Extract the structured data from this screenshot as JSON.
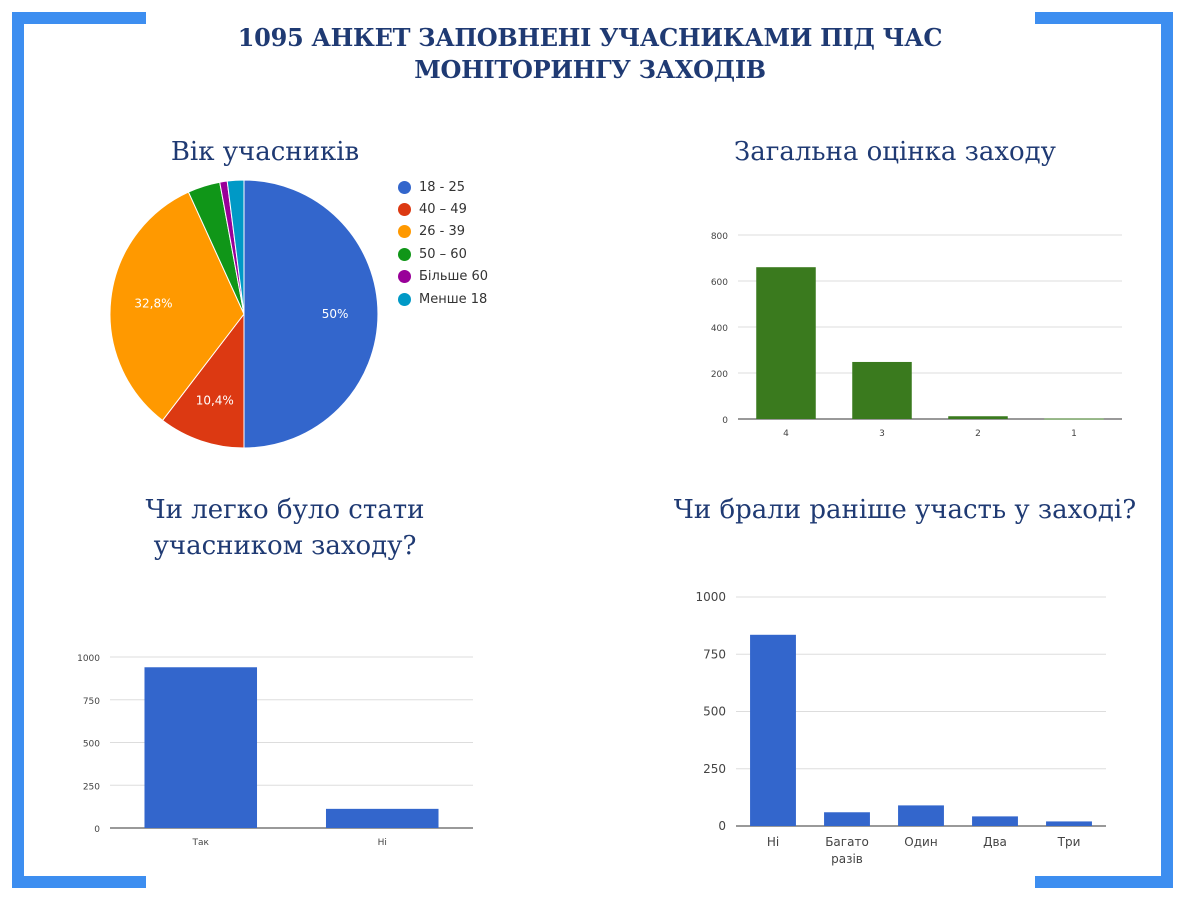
{
  "colors": {
    "frame": "#3d8ef0",
    "title": "#1f3a73",
    "bar_blue": "#3366cc",
    "bar_green": "#3a7a1e",
    "grid": "#dddddd",
    "axis": "#333333"
  },
  "page_title": {
    "line1": "1095 АНКЕТ ЗАПОВНЕНІ УЧАСНИКАМИ ПІД ЧАС",
    "line2": "МОНІТОРИНГУ ЗАХОДІВ"
  },
  "titles": {
    "age": "Вік учасників",
    "rating": "Загальна оцінка заходу",
    "easy_line1": "Чи легко було стати",
    "easy_line2": "учасником заходу?",
    "before": "Чи брали раніше участь у заході?"
  },
  "chart_data": [
    {
      "id": "age",
      "type": "pie",
      "legend_position": "right",
      "labels": [
        "18 - 25",
        "40 – 49",
        "26 - 39",
        "50 – 60",
        "Більше 60",
        "Менше 18"
      ],
      "values": [
        50.0,
        10.4,
        32.8,
        3.9,
        0.9,
        2.0
      ],
      "colors": [
        "#3366cc",
        "#dc3912",
        "#ff9900",
        "#109618",
        "#990099",
        "#0099c6"
      ],
      "data_labels": [
        "50%",
        "10,4%",
        "32,8%",
        "",
        "",
        ""
      ]
    },
    {
      "id": "rating",
      "type": "bar",
      "categories": [
        "4",
        "3",
        "2",
        "1"
      ],
      "values": [
        660,
        248,
        12,
        2
      ],
      "ylim": [
        0,
        800
      ],
      "yticks": [
        "0",
        "200",
        "400",
        "600",
        "800"
      ],
      "grid": true,
      "color": "#3a7a1e"
    },
    {
      "id": "easy",
      "type": "bar",
      "categories": [
        "Так",
        "Ні"
      ],
      "values": [
        940,
        112
      ],
      "ylim": [
        0,
        1000
      ],
      "yticks": [
        "0",
        "250",
        "500",
        "750",
        "1000"
      ],
      "grid": true,
      "color": "#3366cc"
    },
    {
      "id": "before",
      "type": "bar",
      "categories": [
        "Ні",
        "Багато\nразів",
        "Один",
        "Два",
        "Три"
      ],
      "values": [
        835,
        60,
        90,
        42,
        20
      ],
      "ylim": [
        0,
        1000
      ],
      "yticks": [
        "0",
        "250",
        "500",
        "750",
        "1000"
      ],
      "grid": true,
      "color": "#3366cc"
    }
  ]
}
